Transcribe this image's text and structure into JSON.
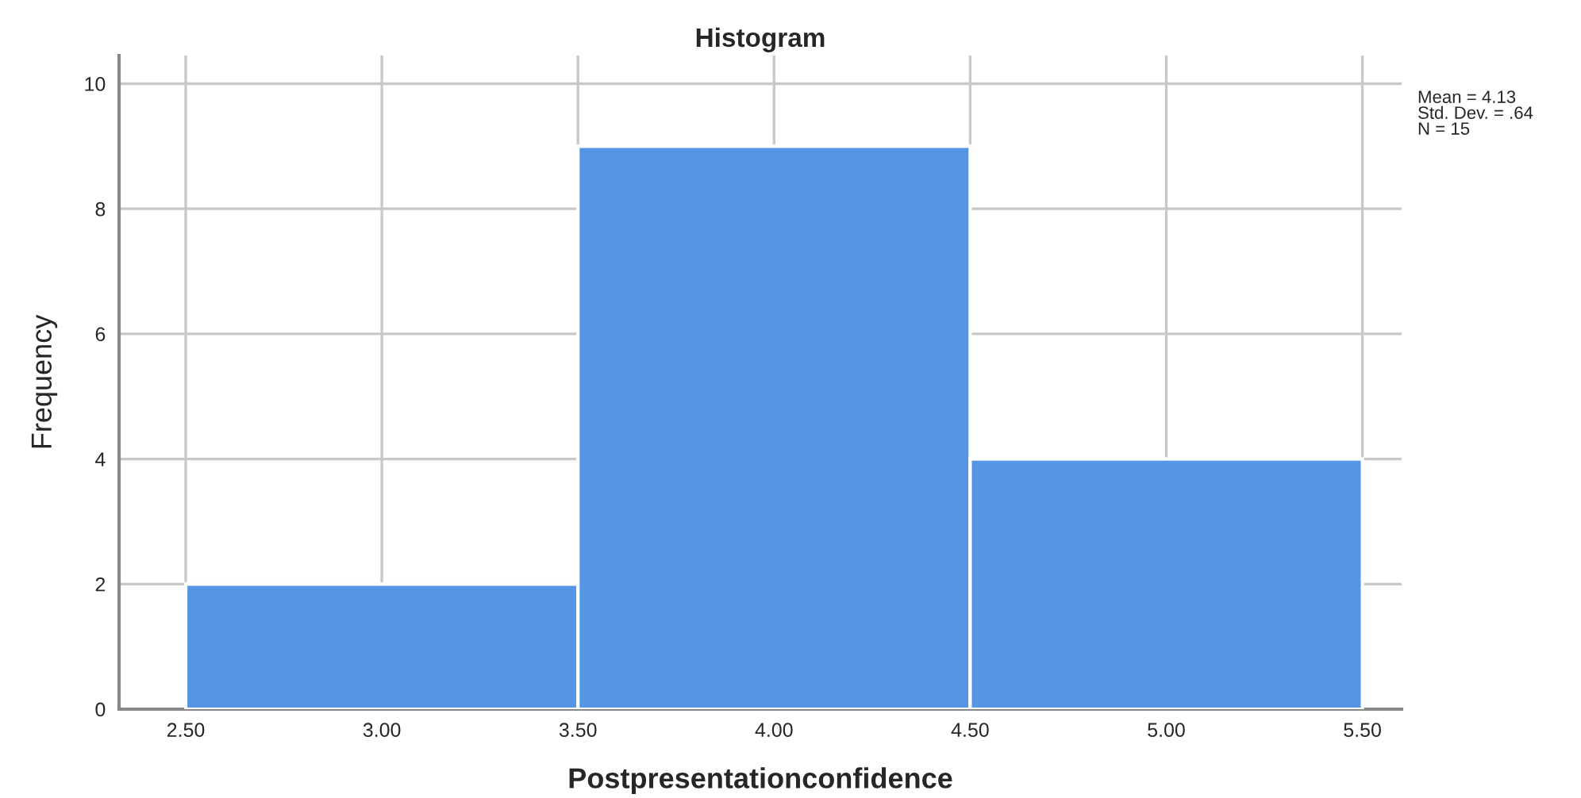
{
  "chart_data": {
    "type": "histogram",
    "title": "Histogram",
    "xlabel": "Postpresentationconfidence",
    "ylabel": "Frequency",
    "bins": [
      2.5,
      3.5,
      4.5,
      5.5
    ],
    "values": [
      2,
      9,
      4
    ],
    "color": "#5595e4",
    "xlim": [
      2.33,
      5.6
    ],
    "ylim": [
      0,
      10.45
    ],
    "xticks": [
      {
        "value": 2.5,
        "label": "2.50"
      },
      {
        "value": 3.0,
        "label": "3.00"
      },
      {
        "value": 3.5,
        "label": "3.50"
      },
      {
        "value": 4.0,
        "label": "4.00"
      },
      {
        "value": 4.5,
        "label": "4.50"
      },
      {
        "value": 5.0,
        "label": "5.00"
      },
      {
        "value": 5.5,
        "label": "5.50"
      }
    ],
    "yticks": [
      0,
      2,
      4,
      6,
      8,
      10
    ],
    "grid": true,
    "annotations": [
      "Mean = 4.13",
      "Std. Dev. = .64",
      "N = 15"
    ]
  }
}
